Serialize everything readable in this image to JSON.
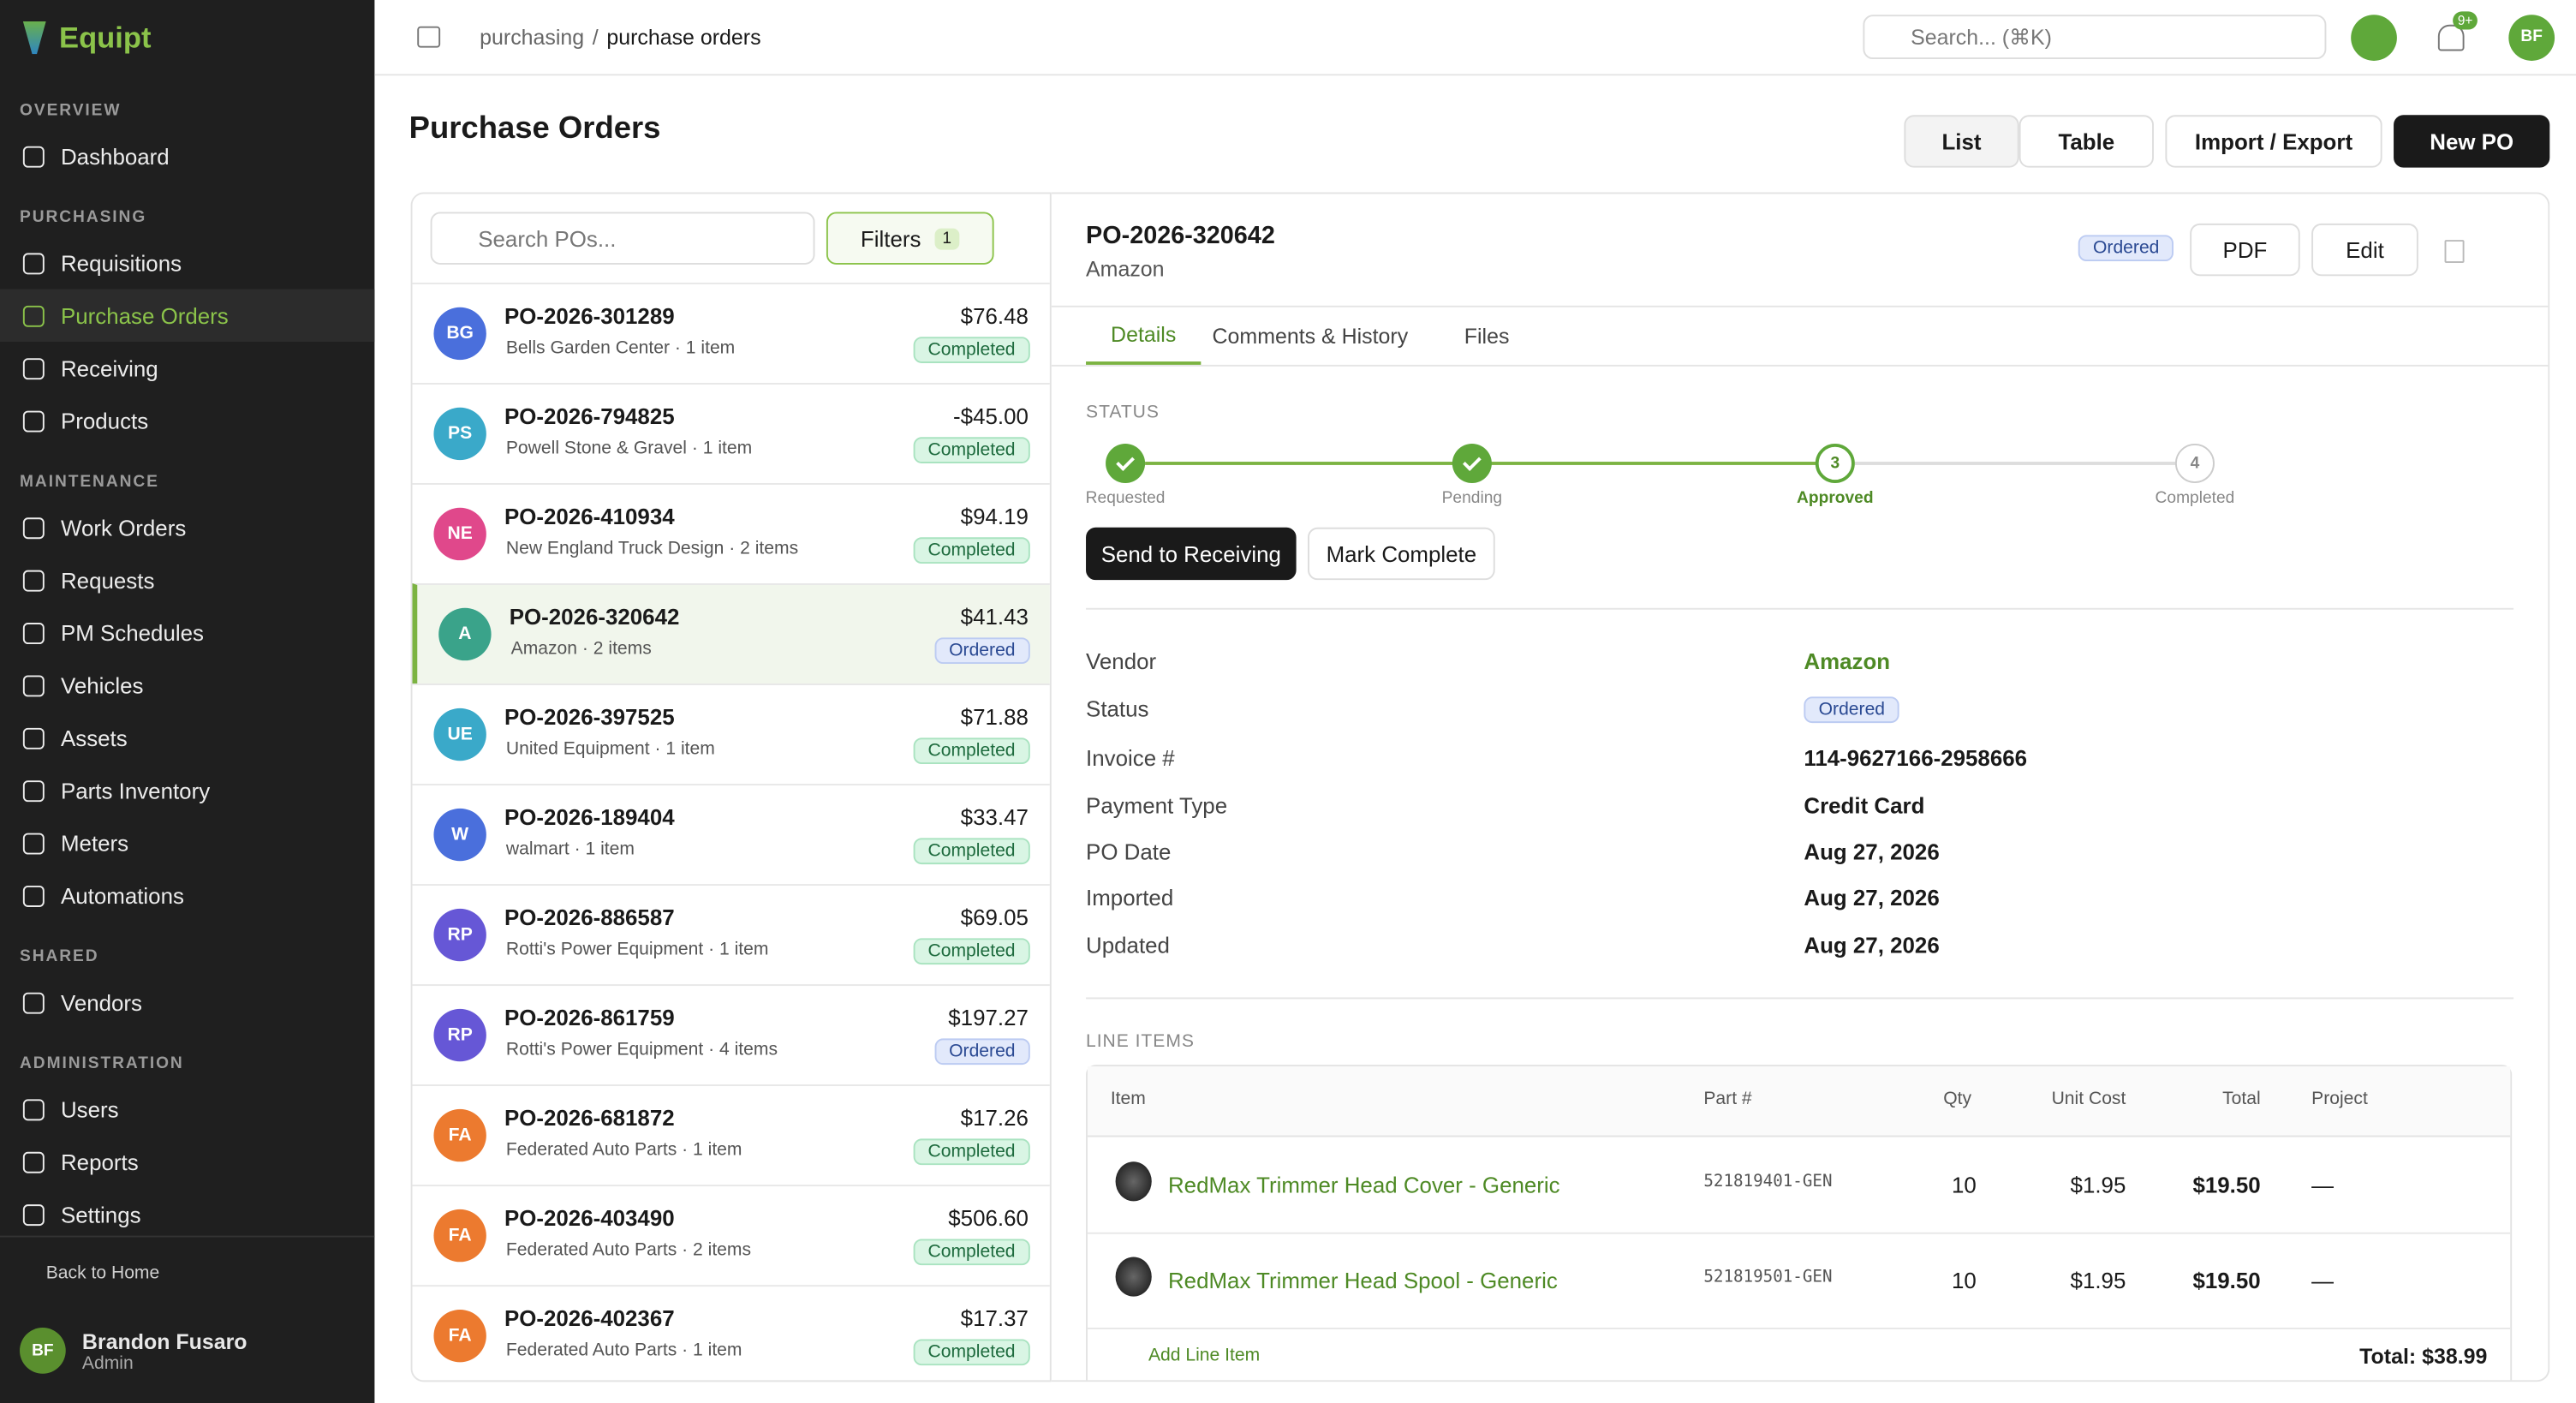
{
  "sidebar": {
    "brand": "Equipt",
    "sections": [
      {
        "title": "OVERVIEW",
        "items": [
          "Dashboard"
        ]
      },
      {
        "title": "PURCHASING",
        "items": [
          "Requisitions",
          "Purchase Orders",
          "Receiving",
          "Products"
        ]
      },
      {
        "title": "MAINTENANCE",
        "items": [
          "Work Orders",
          "Requests",
          "PM Schedules",
          "Vehicles",
          "Assets",
          "Parts Inventory",
          "Meters",
          "Automations"
        ]
      },
      {
        "title": "SHARED",
        "items": [
          "Vendors"
        ]
      },
      {
        "title": "ADMINISTRATION",
        "items": [
          "Users",
          "Reports",
          "Settings"
        ]
      }
    ],
    "active": "Purchase Orders",
    "back": "Back to Home",
    "user": {
      "initials": "BF",
      "name": "Brandon Fusaro",
      "role": "Admin"
    }
  },
  "header": {
    "breadcrumb": [
      "purchasing",
      "purchase orders"
    ],
    "separator": "/",
    "search": "Search... (⌘K)",
    "notifications": "9+",
    "avatar": "BF"
  },
  "page": {
    "title": "Purchase Orders",
    "buttons": [
      "List",
      "Table",
      "Import / Export",
      "New PO"
    ]
  },
  "list": {
    "search": "Search POs...",
    "filters": "Filters",
    "filter_count": "1",
    "orders": [
      {
        "initials": "BG",
        "color": "#4a6fdc",
        "id": "PO-2026-301289",
        "meta": "Bells Garden Center · 1 item",
        "amount": "$76.48",
        "status": "Completed"
      },
      {
        "initials": "PS",
        "color": "#3aa9c9",
        "id": "PO-2026-794825",
        "meta": "Powell Stone & Gravel · 1 item",
        "amount": "-$45.00",
        "status": "Completed"
      },
      {
        "initials": "NE",
        "color": "#e0488b",
        "id": "PO-2026-410934",
        "meta": "New England Truck Design · 2 items",
        "amount": "$94.19",
        "status": "Completed"
      },
      {
        "initials": "A",
        "color": "#3aa38a",
        "id": "PO-2026-320642",
        "meta": "Amazon · 2 items",
        "amount": "$41.43",
        "status": "Ordered",
        "selected": true
      },
      {
        "initials": "UE",
        "color": "#3aa9c9",
        "id": "PO-2026-397525",
        "meta": "United Equipment · 1 item",
        "amount": "$71.88",
        "status": "Completed"
      },
      {
        "initials": "W",
        "color": "#4a6fdc",
        "id": "PO-2026-189404",
        "meta": "walmart · 1 item",
        "amount": "$33.47",
        "status": "Completed"
      },
      {
        "initials": "RP",
        "color": "#6657d6",
        "id": "PO-2026-886587",
        "meta": "Rotti's Power Equipment · 1 item",
        "amount": "$69.05",
        "status": "Completed"
      },
      {
        "initials": "RP",
        "color": "#6657d6",
        "id": "PO-2026-861759",
        "meta": "Rotti's Power Equipment · 4 items",
        "amount": "$197.27",
        "status": "Ordered"
      },
      {
        "initials": "FA",
        "color": "#ec7a2f",
        "id": "PO-2026-681872",
        "meta": "Federated Auto Parts · 1 item",
        "amount": "$17.26",
        "status": "Completed"
      },
      {
        "initials": "FA",
        "color": "#ec7a2f",
        "id": "PO-2026-403490",
        "meta": "Federated Auto Parts · 2 items",
        "amount": "$506.60",
        "status": "Completed"
      },
      {
        "initials": "FA",
        "color": "#ec7a2f",
        "id": "PO-2026-402367",
        "meta": "Federated Auto Parts · 1 item",
        "amount": "$17.37",
        "status": "Completed"
      }
    ]
  },
  "detail": {
    "id": "PO-2026-320642",
    "vendor": "Amazon",
    "status": "Ordered",
    "buttons": [
      "PDF",
      "Edit"
    ],
    "tabs": [
      "Details",
      "Comments & History",
      "Files"
    ],
    "status_heading": "STATUS",
    "steps": [
      {
        "label": "Requested"
      },
      {
        "label": "Pending"
      },
      {
        "number": "3",
        "label": "Approved"
      },
      {
        "number": "4",
        "label": "Completed"
      }
    ],
    "actions": [
      "Send to Receiving",
      "Mark Complete"
    ],
    "fields": [
      [
        "Vendor",
        "Amazon"
      ],
      [
        "Status",
        "Ordered"
      ],
      [
        "Invoice #",
        "114-9627166-2958666"
      ],
      [
        "Payment Type",
        "Credit Card"
      ],
      [
        "PO Date",
        "Aug 27, 2026"
      ],
      [
        "Imported",
        "Aug 27, 2026"
      ],
      [
        "Updated",
        "Aug 27, 2026"
      ]
    ],
    "line_items": {
      "heading": "LINE ITEMS",
      "columns": [
        "Item",
        "Part #",
        "Qty",
        "Unit Cost",
        "Total",
        "Project"
      ],
      "rows": [
        [
          "RedMax Trimmer Head Cover - Generic",
          "521819401-GEN",
          10,
          "$1.95",
          "$19.50",
          "—"
        ],
        [
          "RedMax Trimmer Head Spool - Generic",
          "521819501-GEN",
          10,
          "$1.95",
          "$19.50",
          "—"
        ]
      ],
      "add": "Add Line Item",
      "total": "Total: $38.99"
    }
  }
}
